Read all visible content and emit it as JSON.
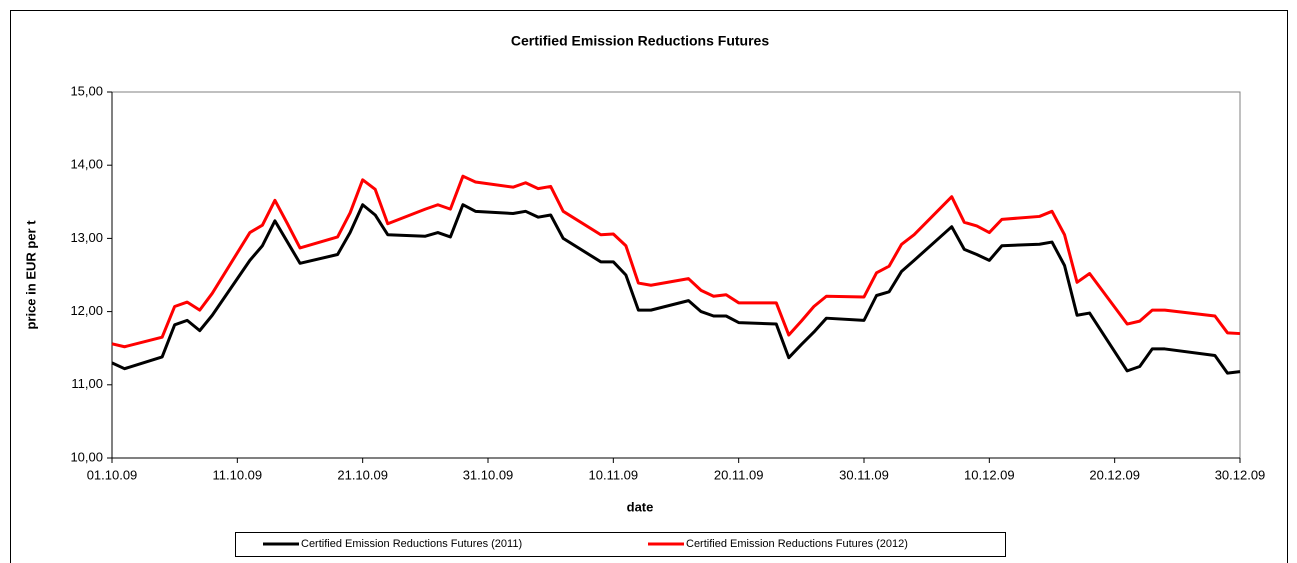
{
  "chart_data": {
    "type": "line",
    "title": "Certified Emission Reductions Futures",
    "x_label": "date",
    "y_label": "price in EUR per t",
    "x": [
      "01.10.09",
      "02.10.09",
      "05.10.09",
      "06.10.09",
      "07.10.09",
      "08.10.09",
      "09.10.09",
      "12.10.09",
      "13.10.09",
      "14.10.09",
      "15.10.09",
      "16.10.09",
      "19.10.09",
      "20.10.09",
      "21.10.09",
      "22.10.09",
      "23.10.09",
      "26.10.09",
      "27.10.09",
      "28.10.09",
      "29.10.09",
      "30.10.09",
      "02.11.09",
      "03.11.09",
      "04.11.09",
      "05.11.09",
      "06.11.09",
      "09.11.09",
      "10.11.09",
      "11.11.09",
      "12.11.09",
      "13.11.09",
      "16.11.09",
      "17.11.09",
      "18.11.09",
      "19.11.09",
      "20.11.09",
      "23.11.09",
      "24.11.09",
      "25.11.09",
      "26.11.09",
      "27.11.09",
      "30.11.09",
      "01.12.09",
      "02.12.09",
      "03.12.09",
      "04.12.09",
      "07.12.09",
      "08.12.09",
      "09.12.09",
      "10.12.09",
      "11.12.09",
      "14.12.09",
      "15.12.09",
      "16.12.09",
      "17.12.09",
      "18.12.09",
      "21.12.09",
      "22.12.09",
      "23.12.09",
      "24.12.09",
      "28.12.09",
      "29.12.09",
      "30.12.09"
    ],
    "series": [
      {
        "name": "Certified Emission Reductions Futures (2011)",
        "color": "#000000",
        "values": [
          11.3,
          11.22,
          11.38,
          11.82,
          11.88,
          11.74,
          11.95,
          12.7,
          12.9,
          13.24,
          12.95,
          12.66,
          12.78,
          13.08,
          13.46,
          13.32,
          13.05,
          13.03,
          13.08,
          13.02,
          13.46,
          13.37,
          13.34,
          13.37,
          13.29,
          13.32,
          13.0,
          12.68,
          12.68,
          12.5,
          12.02,
          12.02,
          12.15,
          12.0,
          11.94,
          11.94,
          11.85,
          11.83,
          11.37,
          11.55,
          11.72,
          11.91,
          11.88,
          12.22,
          12.27,
          12.55,
          12.7,
          13.16,
          12.85,
          12.78,
          12.7,
          12.9,
          12.92,
          12.95,
          12.63,
          11.95,
          11.98,
          11.19,
          11.25,
          11.49,
          11.49,
          11.4,
          11.16,
          11.18
        ]
      },
      {
        "name": "Certified Emission Reductions Futures (2012)",
        "color": "#ff0000",
        "values": [
          11.56,
          11.52,
          11.65,
          12.07,
          12.13,
          12.02,
          12.25,
          13.08,
          13.18,
          13.52,
          13.2,
          12.87,
          13.02,
          13.35,
          13.8,
          13.67,
          13.2,
          13.4,
          13.46,
          13.4,
          13.85,
          13.77,
          13.7,
          13.76,
          13.68,
          13.71,
          13.37,
          13.05,
          13.06,
          12.9,
          12.39,
          12.36,
          12.45,
          12.29,
          12.21,
          12.23,
          12.12,
          12.12,
          11.68,
          11.87,
          12.07,
          12.21,
          12.2,
          12.53,
          12.62,
          12.92,
          13.05,
          13.57,
          13.22,
          13.17,
          13.08,
          13.26,
          13.3,
          13.37,
          13.05,
          12.4,
          12.52,
          11.83,
          11.87,
          12.02,
          12.02,
          11.94,
          11.71,
          11.7
        ]
      }
    ],
    "xlim": [
      "01.10.09",
      "30.12.09"
    ],
    "xticks": [
      "01.10.09",
      "11.10.09",
      "21.10.09",
      "31.10.09",
      "10.11.09",
      "20.11.09",
      "30.11.09",
      "10.12.09",
      "20.12.09",
      "30.12.09"
    ],
    "ylim": [
      10,
      15
    ],
    "yticks": [
      {
        "value": 10,
        "label": "10,00"
      },
      {
        "value": 11,
        "label": "11,00"
      },
      {
        "value": 12,
        "label": "12,00"
      },
      {
        "value": 13,
        "label": "13,00"
      },
      {
        "value": 14,
        "label": "14,00"
      },
      {
        "value": 15,
        "label": "15,00"
      }
    ],
    "grid": false,
    "legend": "bottom"
  }
}
